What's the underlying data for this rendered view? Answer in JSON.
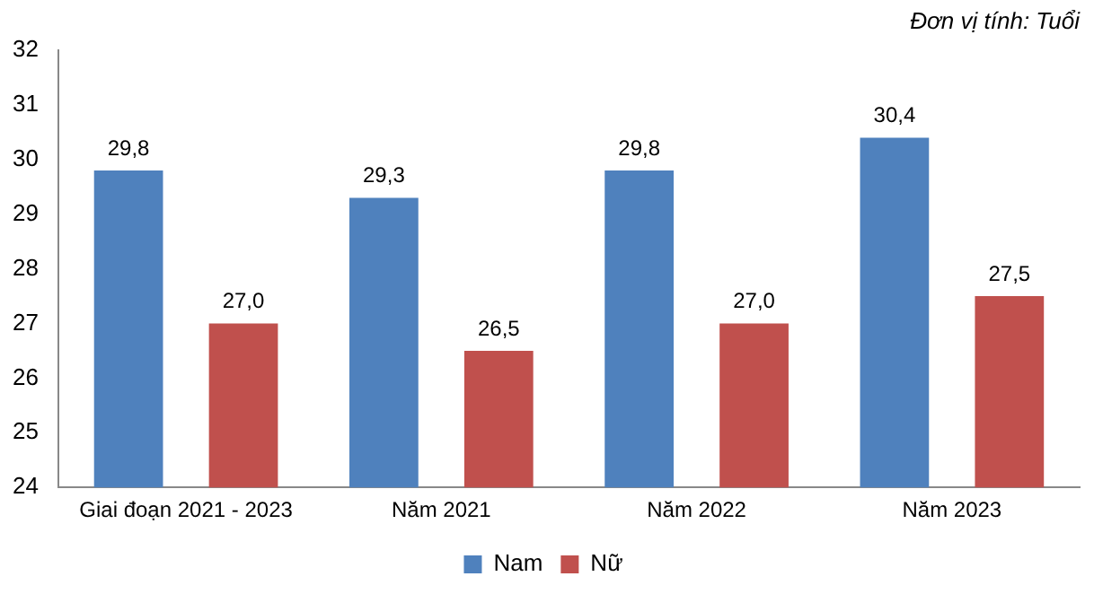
{
  "chart_data": {
    "type": "bar",
    "annotations": [
      "Đơn vị tính: Tuổi"
    ],
    "categories": [
      "Giai đoạn 2021 - 2023",
      "Năm 2021",
      "Năm 2022",
      "Năm 2023"
    ],
    "series": [
      {
        "name": "Nam",
        "color": "#4f81bd",
        "values": [
          29.8,
          29.3,
          29.8,
          30.4
        ],
        "value_labels": [
          "29,8",
          "29,3",
          "29,8",
          "30,4"
        ]
      },
      {
        "name": "Nữ",
        "color": "#c0504d",
        "values": [
          27.0,
          26.5,
          27.0,
          27.5
        ],
        "value_labels": [
          "27,0",
          "26,5",
          "27,0",
          "27,5"
        ]
      }
    ],
    "ylim": [
      24,
      32
    ],
    "yticks": [
      24,
      25,
      26,
      27,
      28,
      29,
      30,
      31,
      32
    ],
    "legend": "bottom"
  }
}
